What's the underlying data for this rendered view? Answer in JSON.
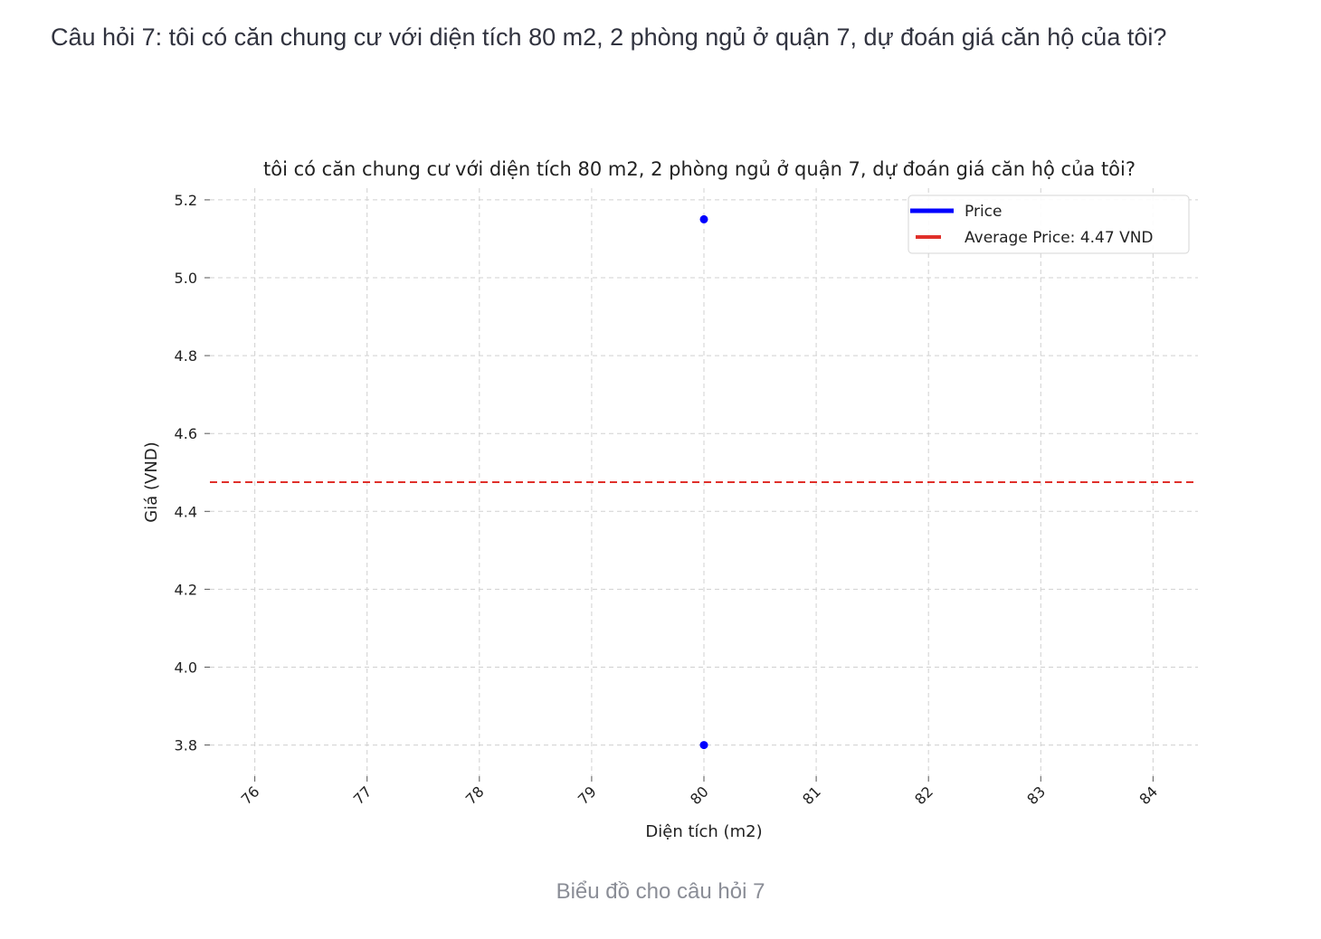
{
  "question_heading": "Câu hỏi 7: tôi có căn chung cư với diện tích 80 m2, 2 phòng ngủ ở quận 7, dự đoán giá căn hộ của tôi?",
  "caption": "Biểu đồ cho câu hỏi 7",
  "chart_data": {
    "type": "scatter",
    "title": "tôi có căn chung cư với diện tích 80 m2, 2 phòng ngủ ở quận 7, dự đoán giá căn hộ của tôi?",
    "xlabel": "Diện tích (m2)",
    "ylabel": "Giá (VND)",
    "xlim": [
      75.6,
      84.4
    ],
    "ylim": [
      3.72,
      5.23
    ],
    "x_ticks": [
      76,
      77,
      78,
      79,
      80,
      81,
      82,
      83,
      84
    ],
    "y_ticks": [
      3.8,
      4.0,
      4.2,
      4.4,
      4.6,
      4.8,
      5.0,
      5.2
    ],
    "grid": true,
    "legend_position": "top-right",
    "series": [
      {
        "name": "Price",
        "color": "#0000ff",
        "points": [
          {
            "x": 80,
            "y": 5.15
          },
          {
            "x": 80,
            "y": 3.8
          }
        ]
      }
    ],
    "reference_lines": [
      {
        "name": "Average Price: 4.47 VND",
        "y": 4.475,
        "color": "#e0302a",
        "style": "dashed"
      }
    ]
  }
}
